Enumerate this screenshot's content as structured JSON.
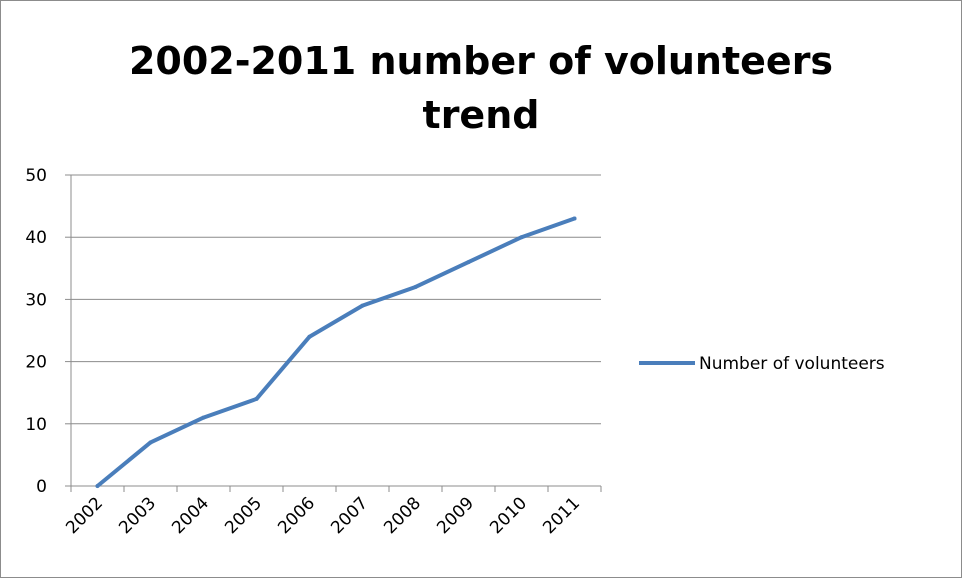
{
  "chart_data": {
    "type": "line",
    "title_lines": [
      "2002-2011 number of volunteers",
      "trend"
    ],
    "categories": [
      "2002",
      "2003",
      "2004",
      "2005",
      "2006",
      "2007",
      "2008",
      "2009",
      "2010",
      "2011"
    ],
    "series": [
      {
        "name": "Number of volunteers",
        "values": [
          0,
          7,
          11,
          14,
          24,
          29,
          32,
          36,
          40,
          43
        ],
        "color": "#4a7ebb"
      }
    ],
    "ylim": [
      0,
      50
    ],
    "yticks": [
      0,
      10,
      20,
      30,
      40,
      50
    ],
    "grid": true,
    "legend_position": "right"
  }
}
